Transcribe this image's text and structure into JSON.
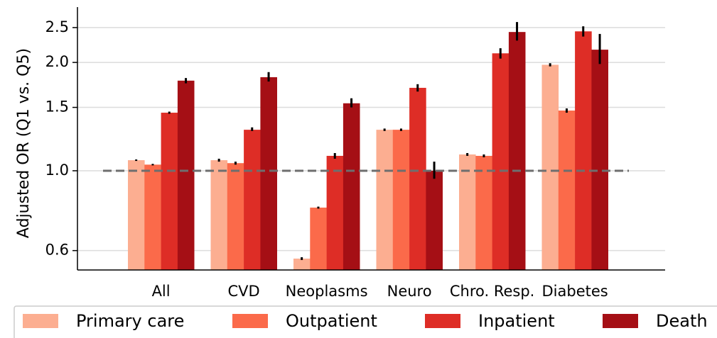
{
  "chart_data": {
    "type": "bar",
    "ylabel": "Adjusted OR (Q1 vs. Q5)",
    "xlabel": "",
    "yscale": "log",
    "ylim": [
      0.53,
      2.85
    ],
    "yticks": [
      0.6,
      1.0,
      1.5,
      2.0,
      2.5
    ],
    "ytick_labels": [
      "0.6",
      "1.0",
      "1.5",
      "2.0",
      "2.5"
    ],
    "grid": true,
    "reference_line": 1.0,
    "legend_position": "bottom",
    "categories": [
      "All",
      "CVD",
      "Neoplasms",
      "Neuro",
      "Chro. Resp.",
      "Diabetes"
    ],
    "series": [
      {
        "name": "Primary care",
        "color": "#fcae91",
        "values": [
          1.07,
          1.07,
          0.57,
          1.3,
          1.11,
          1.97
        ],
        "error_low": [
          1.065,
          1.06,
          0.565,
          1.29,
          1.1,
          1.95
        ],
        "error_high": [
          1.075,
          1.08,
          0.575,
          1.31,
          1.12,
          1.99
        ]
      },
      {
        "name": "Outpatient",
        "color": "#fb6a4a",
        "values": [
          1.04,
          1.05,
          0.79,
          1.3,
          1.1,
          1.47
        ],
        "error_low": [
          1.035,
          1.04,
          0.785,
          1.29,
          1.09,
          1.45
        ],
        "error_high": [
          1.045,
          1.06,
          0.795,
          1.31,
          1.11,
          1.49
        ]
      },
      {
        "name": "Inpatient",
        "color": "#de2d26",
        "values": [
          1.45,
          1.3,
          1.1,
          1.7,
          2.12,
          2.44
        ],
        "error_low": [
          1.44,
          1.29,
          1.08,
          1.66,
          2.05,
          2.36
        ],
        "error_high": [
          1.46,
          1.32,
          1.12,
          1.74,
          2.19,
          2.52
        ]
      },
      {
        "name": "Death",
        "color": "#a50f15",
        "values": [
          1.78,
          1.82,
          1.54,
          1.0,
          2.43,
          2.17
        ],
        "error_low": [
          1.75,
          1.77,
          1.5,
          0.95,
          2.3,
          1.98
        ],
        "error_high": [
          1.81,
          1.88,
          1.59,
          1.06,
          2.59,
          2.4
        ]
      }
    ]
  }
}
